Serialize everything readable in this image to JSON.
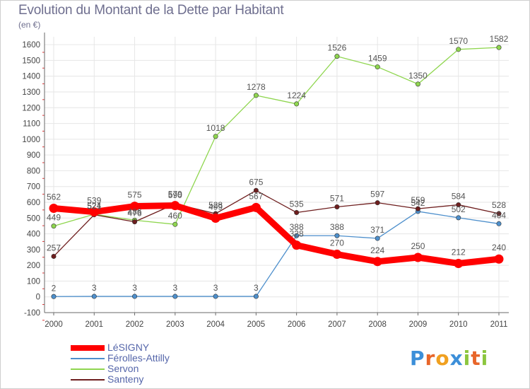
{
  "title": "Evolution du Montant de la Dette par Habitant",
  "unit_label": "(en €)",
  "logo_text": "Proxiti",
  "chart_data": {
    "type": "line",
    "x": [
      "2000",
      "2001",
      "2002",
      "2003",
      "2004",
      "2005",
      "2006",
      "2007",
      "2008",
      "2009",
      "2010",
      "2011"
    ],
    "ylim": [
      -100,
      1650
    ],
    "yticks": [
      -100,
      0,
      100,
      200,
      300,
      400,
      500,
      600,
      700,
      800,
      900,
      1000,
      1100,
      1200,
      1300,
      1400,
      1500,
      1600
    ],
    "grid": true,
    "legend_position": "bottom-left",
    "series": [
      {
        "name": "LéSIGNY",
        "color": "#ff0000",
        "values": [
          562,
          539,
          575,
          579,
          499,
          567,
          328,
          270,
          224,
          250,
          212,
          240
        ]
      },
      {
        "name": "Férolles-Attilly",
        "color": "#4d8fcc",
        "values": [
          2,
          3,
          3,
          3,
          3,
          3,
          388,
          388,
          371,
          542,
          502,
          464
        ]
      },
      {
        "name": "Servon",
        "color": "#8fd64f",
        "values": [
          449,
          524,
          486,
          460,
          1018,
          1278,
          1224,
          1526,
          1459,
          1350,
          1570,
          1582
        ]
      },
      {
        "name": "Santeny",
        "color": "#6e1e1e",
        "values": [
          257,
          521,
          476,
          590,
          528,
          675,
          535,
          571,
          597,
          559,
          584,
          528
        ]
      }
    ]
  }
}
